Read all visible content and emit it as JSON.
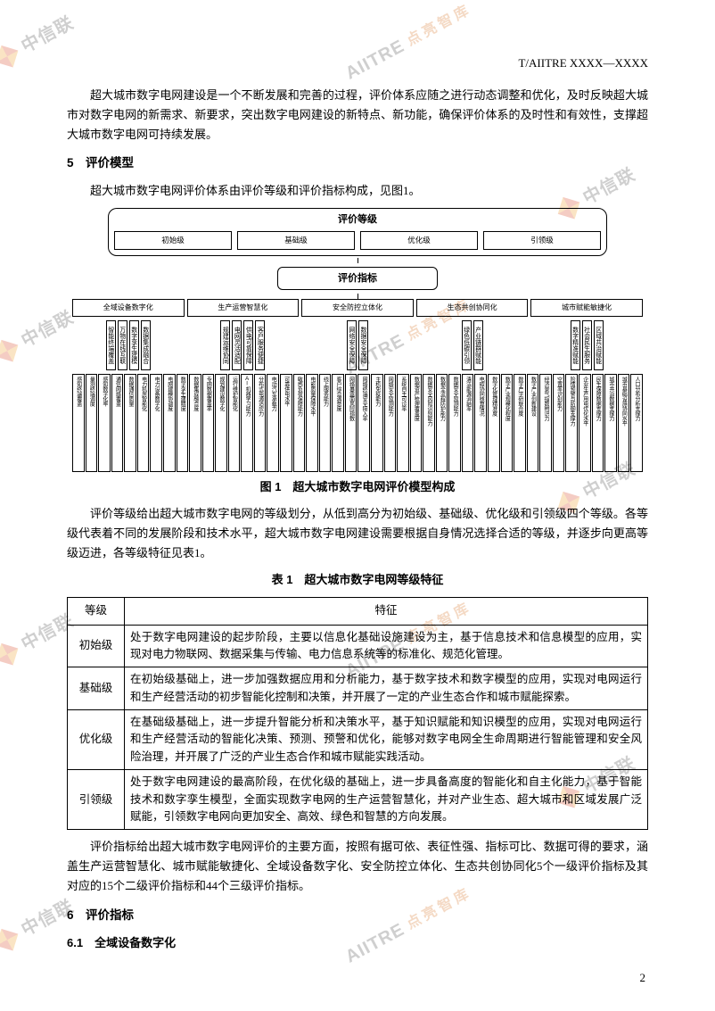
{
  "watermark": {
    "brand1": "中信联",
    "brand1_en": "AIITRE",
    "brand2": "点亮智库"
  },
  "header_code": "T/AIITRE XXXX—XXXX",
  "intro_para": "超大城市数字电网建设是一个不断发展和完善的过程，评价体系应随之进行动态调整和优化，及时反映超大城市对数字电网的新需求、新要求，突出数字电网建设的新特点、新功能，确保评价体系的及时性和有效性，支撑超大城市数字电网可持续发展。",
  "s5_title": "5　评价模型",
  "s5_para1": "超大城市数字电网评价体系由评价等级和评价指标构成，见图1。",
  "diagram": {
    "top_title": "评价等级",
    "levels": [
      "初始级",
      "基础级",
      "优化级",
      "引领级"
    ],
    "mid_title": "评价指标",
    "categories": [
      {
        "name": "全域设备数字化",
        "subs": [
          "智能终端覆盖",
          "万物在线互联",
          "数字孪生建模",
          "数据集成融合"
        ],
        "leaves": [
          "感知终端覆盖",
          "量测终端调度",
          "感知数字化率",
          "通信网络覆盖",
          "数据通信质量",
          "电力机房智能化",
          "电力设备数字化",
          "电网建模协调度",
          "数字孪生建精度",
          "数据集成融合度",
          "专网数据覆盖率"
        ]
      },
      {
        "name": "生产运营智慧化",
        "subs": [
          "规建运维协同",
          "电网灵活适配",
          "供电可靠保障",
          "客户服务便捷"
        ],
        "leaves": [
          "规划建设数字化",
          "运行维护智能化",
          "AI机器学习能力",
          "分布式电源适应力",
          "电动汽车承载力",
          "可靠供电水平",
          "敏感负荷保障能力",
          "电能质量保障水平",
          "线上服务能力",
          "客户综合满意度"
        ]
      },
      {
        "name": "安全防控立体化",
        "subs": [
          "网络安全保障",
          "数据安全保障"
        ],
        "leaves": [
          "网络暴露面风险指数",
          "网络终端安全接入率",
          "主机免疫能力",
          "网络安全监测能力",
          "系统自主可诊率",
          "数据资产梳理覆盖度",
          "数据安全风险识别能力",
          "数据全流程防护能力",
          "数据安全监测能力"
        ]
      },
      {
        "name": "生态共创协同化",
        "subs": [
          "绿色低碳引领",
          "产业链群赋能"
        ],
        "leaves": [
          "清洁能源消纳率",
          "电碳协同核算情况",
          "数字化管理精准度",
          "数字产业规模化程度",
          "数字产学研联合度",
          "数字产业创新建设"
        ]
      },
      {
        "name": "城市赋能敏捷化",
        "subs": [
          "数字精准赋能",
          "社会民生服务",
          "区域共治赋能"
        ],
        "leaves": [
          "经济景气指数辨识力",
          "空置率识别能力",
          "险情预警与防御支撑力",
          "企业生产用电优化水平",
          "民生保障数据支撑力",
          "城市共治数据支撑力",
          "城市基础设施协同水平",
          "人口分布分析支撑力"
        ]
      }
    ]
  },
  "fig1_caption": "图 1　超大城市数字电网评价模型构成",
  "s5_para2": "评价等级给出超大城市数字电网的等级划分，从低到高分为初始级、基础级、优化级和引领级四个等级。各等级代表着不同的发展阶段和技术水平，超大城市数字电网建设需要根据自身情况选择合适的等级，并逐步向更高等级迈进，各等级特征见表1。",
  "tab1_caption": "表 1　超大城市数字电网等级特征",
  "table": {
    "head_level": "等级",
    "head_feature": "特征",
    "rows": [
      {
        "level": "初始级",
        "desc": "处于数字电网建设的起步阶段，主要以信息化基础设施建设为主，基于信息技术和信息模型的应用，实现对电力物联网、数据采集与传输、电力信息系统等的标准化、规范化管理。"
      },
      {
        "level": "基础级",
        "desc": "在初始级基础上，进一步加强数据应用和分析能力，基于数字技术和数字模型的应用，实现对电网运行和生产经营活动的初步智能化控制和决策，并开展了一定的产业生态合作和城市赋能探索。"
      },
      {
        "level": "优化级",
        "desc": "在基础级基础上，进一步提升智能分析和决策水平，基于知识赋能和知识模型的应用，实现对电网运行和生产经营活动的智能化决策、预测、预警和优化，能够对数字电网全生命周期进行智能管理和安全风险治理，并开展了广泛的产业生态合作和城市赋能实践活动。"
      },
      {
        "level": "引领级",
        "desc": "处于数字电网建设的最高阶段，在优化级的基础上，进一步具备高度的智能化和自主化能力，基于智能技术和数字孪生模型，全面实现数字电网的生产运营智慧化，并对产业生态、超大城市和区域发展广泛赋能，引领数字电网向更加安全、高效、绿色和智慧的方向发展。"
      }
    ]
  },
  "s5_para3": "评价指标给出超大城市数字电网评价的主要方面，按照有据可依、表征性强、指标可比、数据可得的要求，涵盖生产运营智慧化、城市赋能敏捷化、全域设备数字化、安全防控立体化、生态共创协同化5个一级评价指标及其对应的15个二级评价指标和44个三级评价指标。",
  "s6_title": "6　评价指标",
  "s6_1_title": "6.1　全域设备数字化",
  "page_number": "2"
}
